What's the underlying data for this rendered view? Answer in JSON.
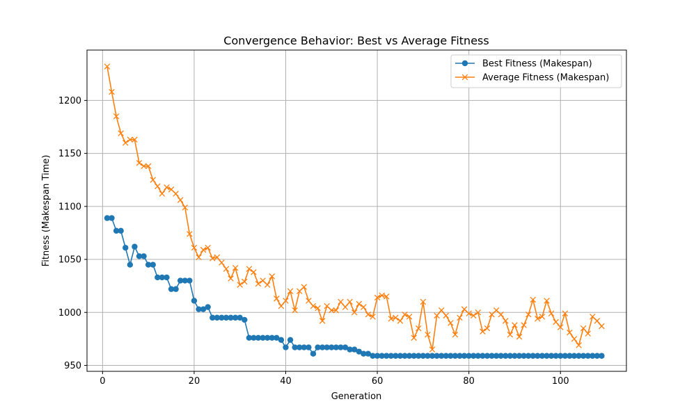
{
  "chart_data": {
    "type": "line",
    "title": "Convergence Behavior: Best vs Average Fitness",
    "xlabel": "Generation",
    "ylabel": "Fitness (Makespan Time)",
    "xlim": [
      -3.4,
      114.4
    ],
    "ylim": [
      944.4,
      1247.5
    ],
    "x_ticks": [
      0,
      20,
      40,
      60,
      80,
      100
    ],
    "y_ticks": [
      950,
      1000,
      1050,
      1100,
      1150,
      1200
    ],
    "grid": true,
    "legend_position": "top-right",
    "x": [
      1,
      2,
      3,
      4,
      5,
      6,
      7,
      8,
      9,
      10,
      11,
      12,
      13,
      14,
      15,
      16,
      17,
      18,
      19,
      20,
      21,
      22,
      23,
      24,
      25,
      26,
      27,
      28,
      29,
      30,
      31,
      32,
      33,
      34,
      35,
      36,
      37,
      38,
      39,
      40,
      41,
      42,
      43,
      44,
      45,
      46,
      47,
      48,
      49,
      50,
      51,
      52,
      53,
      54,
      55,
      56,
      57,
      58,
      59,
      60,
      61,
      62,
      63,
      64,
      65,
      66,
      67,
      68,
      69,
      70,
      71,
      72,
      73,
      74,
      75,
      76,
      77,
      78,
      79,
      80,
      81,
      82,
      83,
      84,
      85,
      86,
      87,
      88,
      89,
      90,
      91,
      92,
      93,
      94,
      95,
      96,
      97,
      98,
      99,
      100,
      101,
      102,
      103,
      104,
      105,
      106,
      107,
      108,
      109
    ],
    "series": [
      {
        "name": "Best Fitness (Makespan)",
        "color": "#1f77b4",
        "marker": "circle",
        "values": [
          1089,
          1089,
          1077,
          1077,
          1061,
          1045,
          1062,
          1053,
          1053,
          1045,
          1045,
          1033,
          1033,
          1033,
          1022,
          1022,
          1030,
          1030,
          1030,
          1011,
          1003,
          1003,
          1005,
          995,
          995,
          995,
          995,
          995,
          995,
          995,
          993,
          976,
          976,
          976,
          976,
          976,
          976,
          976,
          974,
          967,
          974,
          967,
          967,
          967,
          967,
          961,
          967,
          967,
          967,
          967,
          967,
          967,
          967,
          965,
          965,
          963,
          961,
          961,
          959,
          959,
          959,
          959,
          959,
          959,
          959,
          959,
          959,
          959,
          959,
          959,
          959,
          959,
          959,
          959,
          959,
          959,
          959,
          959,
          959,
          959,
          959,
          959,
          959,
          959,
          959,
          959,
          959,
          959,
          959,
          959,
          959,
          959,
          959,
          959,
          959,
          959,
          959,
          959,
          959,
          959,
          959,
          959,
          959,
          959,
          959,
          959,
          959,
          959,
          959
        ]
      },
      {
        "name": "Average Fitness (Makespan)",
        "color": "#ff7f0e",
        "marker": "x",
        "values": [
          1232,
          1208,
          1185,
          1169,
          1160,
          1163,
          1163,
          1141,
          1138,
          1138,
          1125,
          1119,
          1112,
          1118,
          1116,
          1112,
          1106,
          1099,
          1074,
          1061,
          1052,
          1059,
          1061,
          1051,
          1052,
          1047,
          1041,
          1032,
          1042,
          1026,
          1029,
          1041,
          1038,
          1027,
          1030,
          1026,
          1034,
          1013,
          1006,
          1011,
          1020,
          1002,
          1020,
          1024,
          1011,
          1006,
          1004,
          992,
          1006,
          1002,
          1002,
          1010,
          1005,
          1010,
          1000,
          1008,
          1005,
          998,
          996,
          1014,
          1016,
          1015,
          994,
          995,
          992,
          998,
          996,
          976,
          985,
          1010,
          979,
          965,
          997,
          1002,
          997,
          990,
          979,
          995,
          1003,
          999,
          997,
          1000,
          982,
          985,
          998,
          1002,
          998,
          992,
          979,
          988,
          977,
          988,
          998,
          1012,
          994,
          996,
          1011,
          999,
          991,
          986,
          999,
          981,
          975,
          969,
          985,
          980,
          996,
          992,
          987
        ]
      }
    ]
  }
}
